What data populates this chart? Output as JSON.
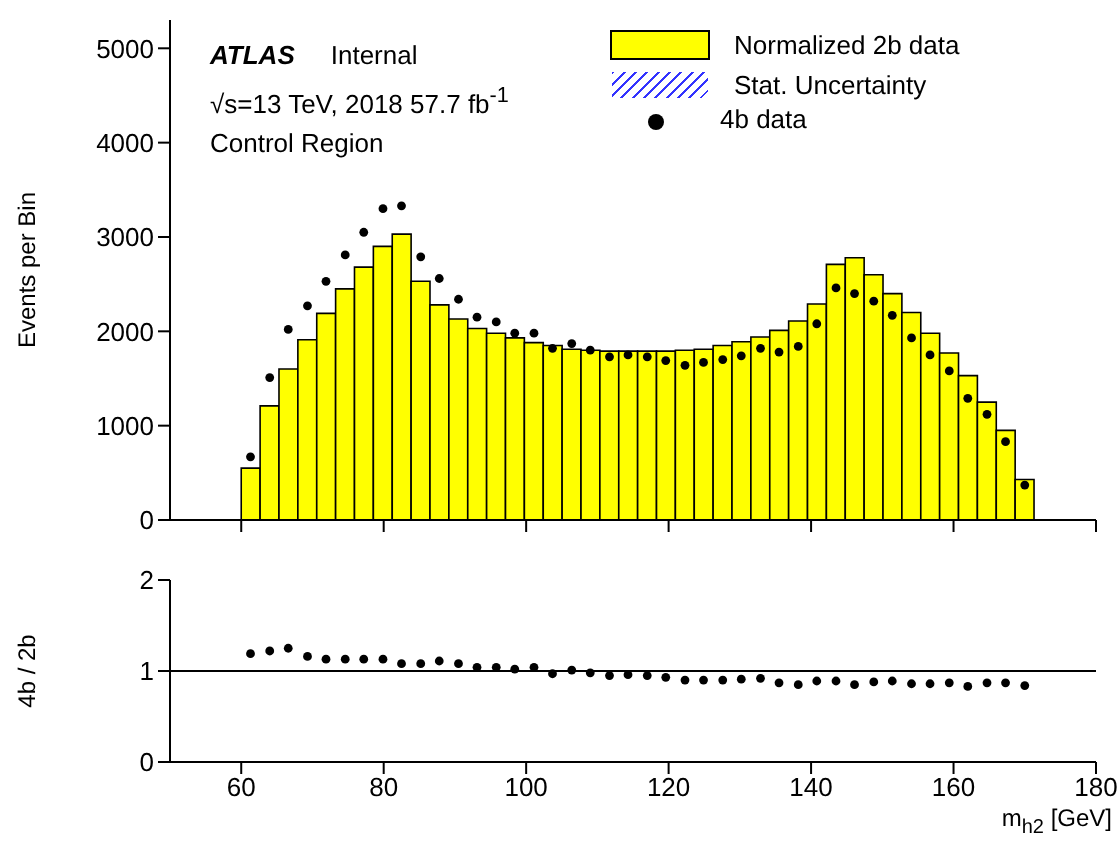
{
  "chart_data": [
    {
      "type": "histogram",
      "ylabel": "Events per Bin",
      "legend": "top right",
      "tick_labels": "y",
      "annotations": [
        "ATLAS",
        "Internal",
        "√s=13 TeV, 2018 57.7 fb$^{-1}$",
        "Control Region",
        "Stat. Uncertainty"
      ],
      "xlim": [
        50,
        180
      ],
      "xticks": [
        60,
        80,
        100,
        120,
        140,
        160,
        180
      ],
      "ylim": [
        0,
        5300
      ],
      "yticks": [
        0,
        1000,
        2000,
        3000,
        4000,
        5000
      ],
      "bins": [
        60,
        62.65,
        65.3,
        67.95,
        70.6,
        73.25,
        75.9,
        78.55,
        81.2,
        83.85,
        86.5,
        89.15,
        91.8,
        94.45,
        97.1,
        99.75,
        102.4,
        105.05,
        107.7,
        110.35,
        113,
        115.65,
        118.3,
        120.95,
        123.6,
        126.25,
        128.9,
        131.55,
        134.2,
        136.85,
        139.5,
        142.15,
        144.8,
        147.45,
        150.1,
        152.75,
        155.4,
        158.05,
        160.7,
        163.35,
        166,
        168.65,
        171.3
      ],
      "series": [
        {
          "name": "Normalized 2b data",
          "color": "#ffff00",
          "values": [
            550,
            1210,
            1600,
            1910,
            2190,
            2450,
            2680,
            2900,
            3030,
            2530,
            2280,
            2130,
            2030,
            1980,
            1930,
            1880,
            1850,
            1810,
            1800,
            1790,
            1790,
            1790,
            1790,
            1800,
            1810,
            1850,
            1890,
            1940,
            2010,
            2110,
            2290,
            2710,
            2780,
            2600,
            2400,
            2200,
            1980,
            1770,
            1530,
            1250,
            950,
            430
          ]
        },
        {
          "name": "4b data",
          "type": "scatter",
          "color": "#000000",
          "x": [
            61.3,
            64.0,
            66.6,
            69.3,
            71.9,
            74.6,
            77.2,
            79.9,
            82.5,
            85.2,
            87.8,
            90.5,
            93.1,
            95.8,
            98.4,
            101.1,
            103.7,
            106.4,
            109.0,
            111.7,
            114.3,
            117.0,
            119.6,
            122.3,
            124.9,
            127.6,
            130.2,
            132.9,
            135.5,
            138.2,
            140.8,
            143.5,
            146.1,
            148.8,
            151.4,
            154.1,
            156.7,
            159.4,
            162.0,
            164.7,
            167.3,
            170.0
          ],
          "values": [
            670,
            1510,
            2020,
            2270,
            2530,
            2810,
            3050,
            3300,
            3330,
            2790,
            2560,
            2340,
            2150,
            2100,
            1980,
            1980,
            1820,
            1870,
            1800,
            1730,
            1750,
            1730,
            1690,
            1640,
            1670,
            1700,
            1740,
            1820,
            1780,
            1840,
            2080,
            2460,
            2400,
            2320,
            2170,
            1930,
            1750,
            1580,
            1290,
            1120,
            830,
            370
          ]
        }
      ]
    },
    {
      "type": "scatter",
      "ylabel": "4b / 2b",
      "xlabel": "m$_{h2}$ [GeV]",
      "xlim": [
        50,
        180
      ],
      "xticks": [
        60,
        80,
        100,
        120,
        140,
        160,
        180
      ],
      "ylim": [
        0,
        2
      ],
      "yticks": [
        0,
        1,
        2
      ],
      "ref_lines": [
        {
          "axis": "y",
          "value": 1,
          "color": "#000000"
        }
      ],
      "series": [
        {
          "color": "#000000",
          "x": [
            61.3,
            64.0,
            66.6,
            69.3,
            71.9,
            74.6,
            77.2,
            79.9,
            82.5,
            85.2,
            87.8,
            90.5,
            93.1,
            95.8,
            98.4,
            101.1,
            103.7,
            106.4,
            109.0,
            111.7,
            114.3,
            117.0,
            119.6,
            122.3,
            124.9,
            127.6,
            130.2,
            132.9,
            135.5,
            138.2,
            140.8,
            143.5,
            146.1,
            148.8,
            151.4,
            154.1,
            156.7,
            159.4,
            162.0,
            164.7,
            167.3,
            170.0
          ],
          "values": [
            1.19,
            1.22,
            1.25,
            1.16,
            1.13,
            1.13,
            1.13,
            1.13,
            1.08,
            1.08,
            1.11,
            1.08,
            1.04,
            1.04,
            1.02,
            1.04,
            0.97,
            1.01,
            0.98,
            0.95,
            0.96,
            0.95,
            0.93,
            0.9,
            0.9,
            0.9,
            0.91,
            0.92,
            0.87,
            0.85,
            0.89,
            0.89,
            0.85,
            0.88,
            0.89,
            0.86,
            0.86,
            0.87,
            0.83,
            0.87,
            0.87,
            0.84
          ]
        }
      ]
    }
  ]
}
